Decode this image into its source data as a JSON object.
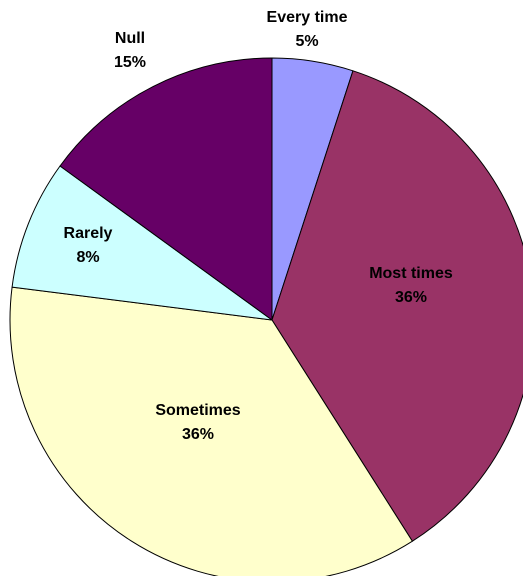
{
  "chart_data": {
    "type": "pie",
    "title": "",
    "start_angle": "12 o'clock",
    "direction": "clockwise",
    "slices": [
      {
        "category": "Every time",
        "value": 5,
        "label": "5%",
        "color": "#9999FF"
      },
      {
        "category": "Most times",
        "value": 36,
        "label": "36%",
        "color": "#993366"
      },
      {
        "category": "Sometimes",
        "value": 36,
        "label": "36%",
        "color": "#FFFFCC"
      },
      {
        "category": "Rarely",
        "value": 8,
        "label": "8%",
        "color": "#CCFFFF"
      },
      {
        "category": "Null",
        "value": 15,
        "label": "15%",
        "color": "#660066"
      }
    ]
  }
}
